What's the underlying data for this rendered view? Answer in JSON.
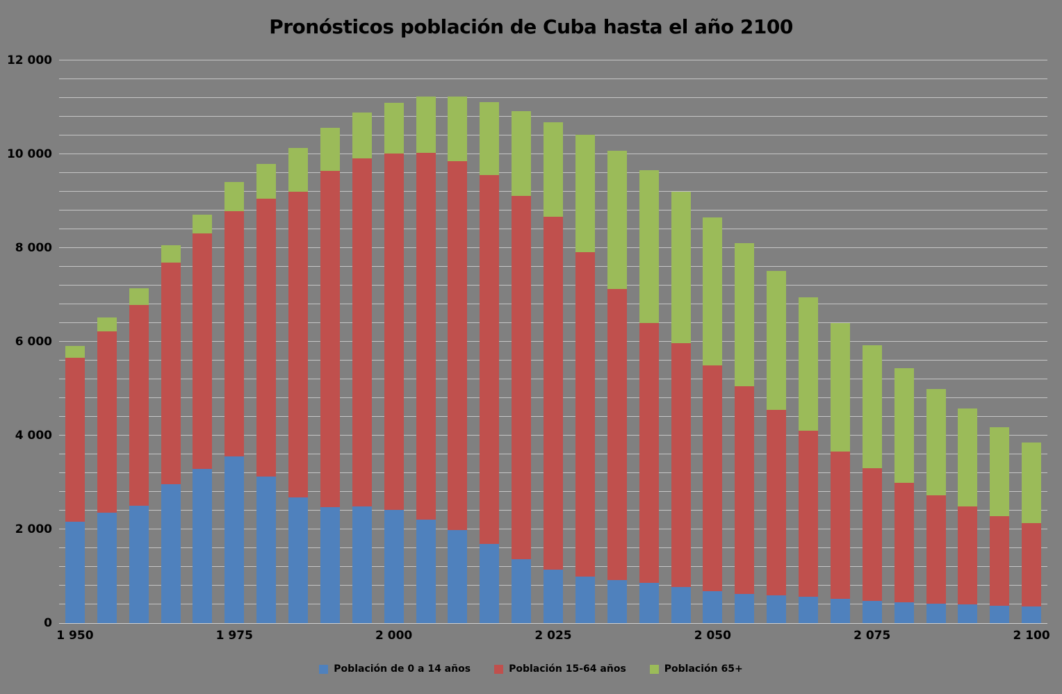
{
  "title": "Pronósticos población de Cuba hasta el año 2100",
  "colors": {
    "background": "#808080",
    "gridline": "#C6C6C6",
    "axis_line": "#CFCFCF",
    "text": "#000000",
    "series_blue": "#4F81BD",
    "series_red": "#C0504D",
    "series_green": "#9BBB59"
  },
  "chart_data": {
    "type": "bar",
    "stacked": true,
    "title": "Pronósticos población de Cuba hasta el año 2100",
    "grid": "on",
    "legend_position": "bottom",
    "ylim": [
      0,
      12000
    ],
    "minor_gridline_step": 400,
    "categories": [
      1950,
      1955,
      1960,
      1965,
      1970,
      1975,
      1980,
      1985,
      1990,
      1995,
      2000,
      2005,
      2010,
      2015,
      2020,
      2025,
      2030,
      2035,
      2040,
      2045,
      2050,
      2055,
      2060,
      2065,
      2070,
      2075,
      2080,
      2085,
      2090,
      2095,
      2100
    ],
    "series": [
      {
        "name": "Población de 0 a 14 años",
        "color": "#4F81BD",
        "values": [
          2160,
          2355,
          2505,
          2960,
          3285,
          3560,
          3125,
          2680,
          2475,
          2485,
          2415,
          2215,
          1990,
          1685,
          1365,
          1140,
          995,
          920,
          855,
          770,
          685,
          620,
          590,
          565,
          525,
          475,
          450,
          415,
          400,
          375,
          350
        ]
      },
      {
        "name": "Población 15-64 años",
        "color": "#C0504D",
        "values": [
          3495,
          3870,
          4275,
          4725,
          5030,
          5225,
          5925,
          6525,
          7170,
          7430,
          7605,
          7815,
          7860,
          7865,
          7740,
          7520,
          6910,
          6210,
          5545,
          5195,
          4815,
          4435,
          3960,
          3540,
          3135,
          2830,
          2545,
          2305,
          2090,
          1900,
          1780
        ]
      },
      {
        "name": "Población 65+",
        "color": "#9BBB59",
        "values": [
          250,
          300,
          360,
          380,
          390,
          620,
          740,
          925,
          915,
          970,
          1070,
          1200,
          1380,
          1565,
          1815,
          2020,
          2505,
          2950,
          3255,
          3235,
          3145,
          3050,
          2960,
          2840,
          2740,
          2615,
          2440,
          2270,
          2085,
          1905,
          1725
        ]
      }
    ],
    "y_ticks": [
      {
        "value": 0,
        "label": "0"
      },
      {
        "value": 2000,
        "label": "2 000"
      },
      {
        "value": 4000,
        "label": "4 000"
      },
      {
        "value": 6000,
        "label": "6 000"
      },
      {
        "value": 8000,
        "label": "8 000"
      },
      {
        "value": 10000,
        "label": "10 000"
      },
      {
        "value": 12000,
        "label": "12 000"
      }
    ],
    "x_ticks": [
      {
        "year": 1950,
        "label": "1 950"
      },
      {
        "year": 1975,
        "label": "1 975"
      },
      {
        "year": 2000,
        "label": "2 000"
      },
      {
        "year": 2025,
        "label": "2 025"
      },
      {
        "year": 2050,
        "label": "2 050"
      },
      {
        "year": 2075,
        "label": "2 075"
      },
      {
        "year": 2100,
        "label": "2 100"
      }
    ]
  }
}
